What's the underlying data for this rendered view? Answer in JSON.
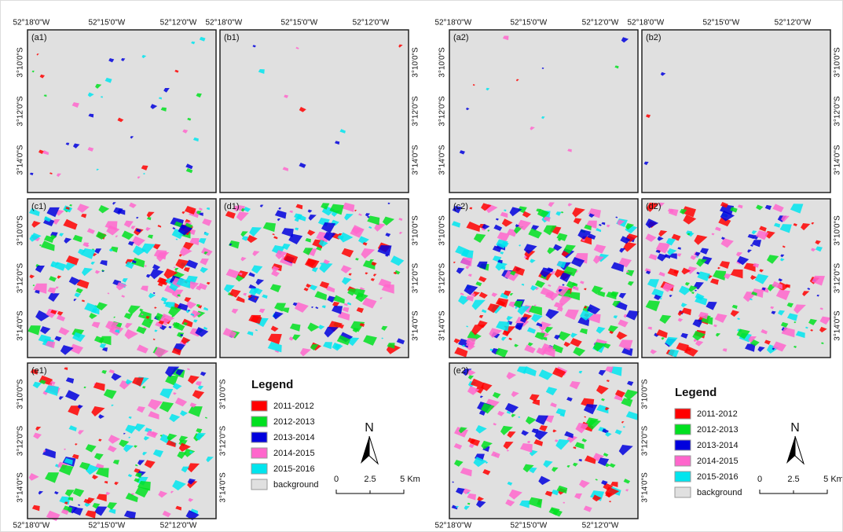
{
  "coordinates": {
    "longitude": [
      "52°18'0\"W",
      "52°15'0\"W",
      "52°12'0\"W"
    ],
    "latitude": [
      "3°10'0\"S",
      "3°12'0\"S",
      "3°14'0\"S"
    ]
  },
  "maps": [
    {
      "panels": [
        "(a1)",
        "(b1)",
        "(c1)",
        "(d1)",
        "(e1)"
      ],
      "legend": {
        "title": "Legend",
        "items": [
          {
            "label": "2011-2012",
            "color": "#ff0000"
          },
          {
            "label": "2012-2013",
            "color": "#00e020"
          },
          {
            "label": "2013-2014",
            "color": "#0000dd"
          },
          {
            "label": "2014-2015",
            "color": "#ff66cc"
          },
          {
            "label": "2015-2016",
            "color": "#00e5ee"
          },
          {
            "label": "background",
            "color": "#e0e0e0"
          }
        ]
      },
      "north": "N",
      "scale": [
        "0",
        "2.5",
        "5 Km"
      ]
    },
    {
      "panels": [
        "(a2)",
        "(b2)",
        "(c2)",
        "(d2)",
        "(e2)"
      ],
      "legend": {
        "title": "Legend",
        "items": [
          {
            "label": "2011-2012",
            "color": "#ff0000"
          },
          {
            "label": "2012-2013",
            "color": "#00e020"
          },
          {
            "label": "2013-2014",
            "color": "#0000dd"
          },
          {
            "label": "2014-2015",
            "color": "#ff66cc"
          },
          {
            "label": "2015-2016",
            "color": "#00e5ee"
          },
          {
            "label": "background",
            "color": "#e0e0e0"
          }
        ]
      },
      "north": "N",
      "scale": [
        "0",
        "2.5",
        "5 Km"
      ]
    }
  ]
}
